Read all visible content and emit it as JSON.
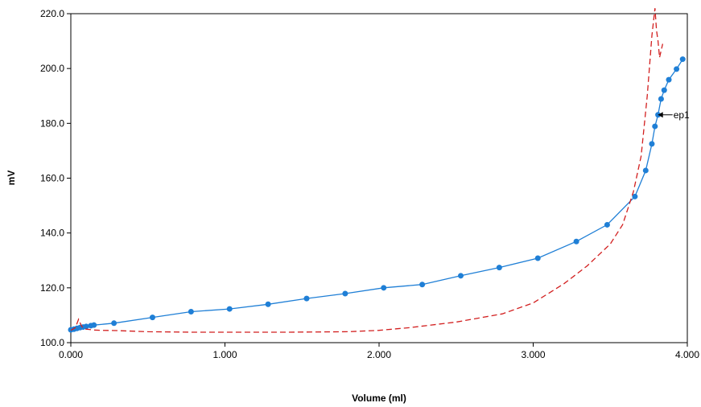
{
  "chart_data": {
    "type": "line",
    "title": "",
    "xlabel": "Volume (ml)",
    "ylabel": "mV",
    "xlim": [
      0,
      4
    ],
    "ylim": [
      100,
      220
    ],
    "x_ticks": [
      0,
      1,
      2,
      3,
      4
    ],
    "x_tick_labels": [
      "0.000",
      "1.000",
      "2.000",
      "3.000",
      "4.000"
    ],
    "y_ticks": [
      100,
      120,
      140,
      160,
      180,
      200,
      220
    ],
    "y_tick_labels": [
      "100.0",
      "120.0",
      "140.0",
      "160.0",
      "180.0",
      "200.0",
      "220.0"
    ],
    "grid": false,
    "legend": "none",
    "series": [
      {
        "style": "solid-markers",
        "color": "#1f7fd6",
        "x": [
          0.0,
          0.02,
          0.04,
          0.06,
          0.08,
          0.1,
          0.13,
          0.15,
          0.28,
          0.53,
          0.78,
          1.03,
          1.28,
          1.53,
          1.78,
          2.03,
          2.28,
          2.53,
          2.78,
          3.03,
          3.28,
          3.48,
          3.66,
          3.73,
          3.77,
          3.79,
          3.81,
          3.83,
          3.85,
          3.88,
          3.93,
          3.97
        ],
        "y": [
          104.7,
          104.9,
          105.2,
          105.5,
          105.7,
          105.9,
          106.2,
          106.4,
          107.1,
          109.2,
          111.3,
          112.3,
          114.0,
          116.1,
          117.9,
          120.0,
          121.2,
          124.4,
          127.4,
          130.8,
          136.9,
          143.0,
          153.3,
          162.8,
          172.5,
          178.9,
          183.1,
          188.9,
          192.1,
          195.9,
          199.8,
          203.4
        ]
      },
      {
        "style": "dashed",
        "color": "#d21f1f",
        "x": [
          0.0,
          0.03,
          0.05,
          0.07,
          0.09,
          0.12,
          0.15,
          0.2,
          0.3,
          0.5,
          0.8,
          1.1,
          1.4,
          1.8,
          2.0,
          2.2,
          2.5,
          2.8,
          3.0,
          3.2,
          3.35,
          3.5,
          3.58,
          3.65,
          3.7,
          3.74,
          3.77,
          3.79,
          3.8,
          3.81,
          3.82,
          3.84
        ],
        "y": [
          104.5,
          105.5,
          108.5,
          106.0,
          105.0,
          104.8,
          104.6,
          104.5,
          104.4,
          104.0,
          103.8,
          103.8,
          103.8,
          104.0,
          104.5,
          105.5,
          107.5,
          110.5,
          114.5,
          121.5,
          128.0,
          136.0,
          143.0,
          155.0,
          168.0,
          190.0,
          212.0,
          222.0,
          214.0,
          210.0,
          204.0,
          209.0
        ]
      }
    ],
    "annotations": [
      {
        "text": "ep1",
        "x": 3.8,
        "y": 183.1
      }
    ]
  }
}
